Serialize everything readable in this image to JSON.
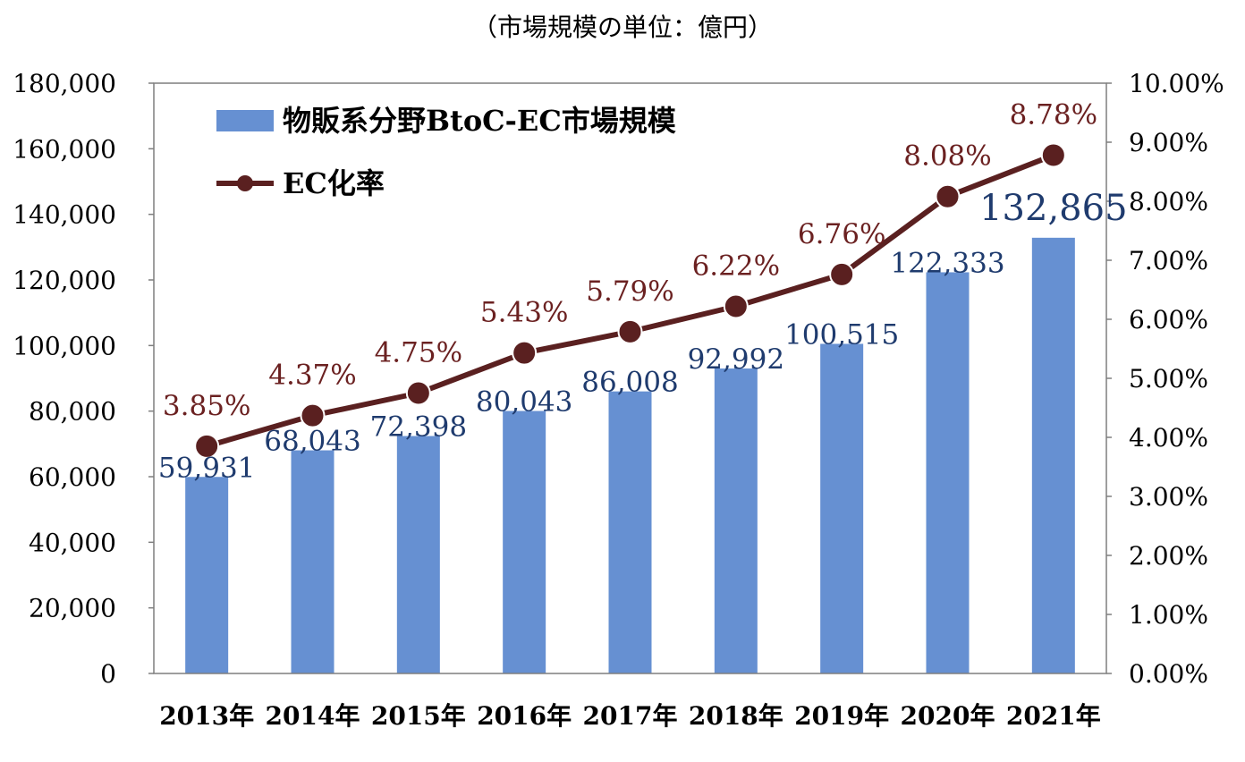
{
  "chart_data": {
    "type": "bar",
    "unit_note": "（市場規模の単位：億円）",
    "categories": [
      "2013年",
      "2014年",
      "2015年",
      "2016年",
      "2017年",
      "2018年",
      "2019年",
      "2020年",
      "2021年"
    ],
    "series": [
      {
        "name": "物販系分野BtoC-EC市場規模",
        "type": "bar",
        "axis": "left",
        "values": [
          59931,
          68043,
          72398,
          80043,
          86008,
          92992,
          100515,
          122333,
          132865
        ],
        "labels": [
          "59,931",
          "68,043",
          "72,398",
          "80,043",
          "86,008",
          "92,992",
          "100,515",
          "122,333",
          "132,865"
        ]
      },
      {
        "name": "EC化率",
        "type": "line",
        "axis": "right",
        "values": [
          3.85,
          4.37,
          4.75,
          5.43,
          5.79,
          6.22,
          6.76,
          8.08,
          8.78
        ],
        "labels": [
          "3.85%",
          "4.37%",
          "4.75%",
          "5.43%",
          "5.79%",
          "6.22%",
          "6.76%",
          "8.08%",
          "8.78%"
        ]
      }
    ],
    "y_left": {
      "ylim": [
        0,
        180000
      ],
      "ticks": [
        "0",
        "20,000",
        "40,000",
        "60,000",
        "80,000",
        "100,000",
        "120,000",
        "140,000",
        "160,000",
        "180,000"
      ]
    },
    "y_right": {
      "ylim": [
        0,
        10
      ],
      "ticks": [
        "0.00%",
        "1.00%",
        "2.00%",
        "3.00%",
        "4.00%",
        "5.00%",
        "6.00%",
        "7.00%",
        "8.00%",
        "9.00%",
        "10.00%"
      ]
    },
    "grid": false,
    "legend_position": "top-left",
    "colors": {
      "bar": "#6690d2",
      "line": "#5a2020",
      "bar_label": "#1f3b6e",
      "line_label": "#6b2121",
      "axis": "#7f7f7f",
      "text": "#000000"
    }
  }
}
